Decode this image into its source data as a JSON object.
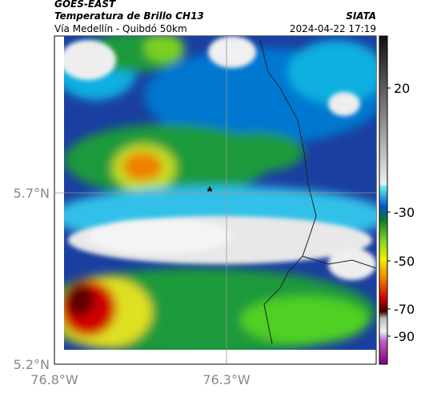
{
  "header": {
    "source": "GOES-EAST",
    "title": "Temperatura de Brillo CH13",
    "agency": "SIATA",
    "route": "Vía Medellín - Quibdó 50km",
    "timestamp": "2024-04-22 17:19"
  },
  "map": {
    "lat_labels": [
      "5.7°N",
      "5.2°N"
    ],
    "lon_labels": [
      "76.8°W",
      "76.3°W"
    ]
  },
  "colorbar": {
    "ticks": [
      20,
      -30,
      -50,
      -70,
      -90
    ]
  }
}
